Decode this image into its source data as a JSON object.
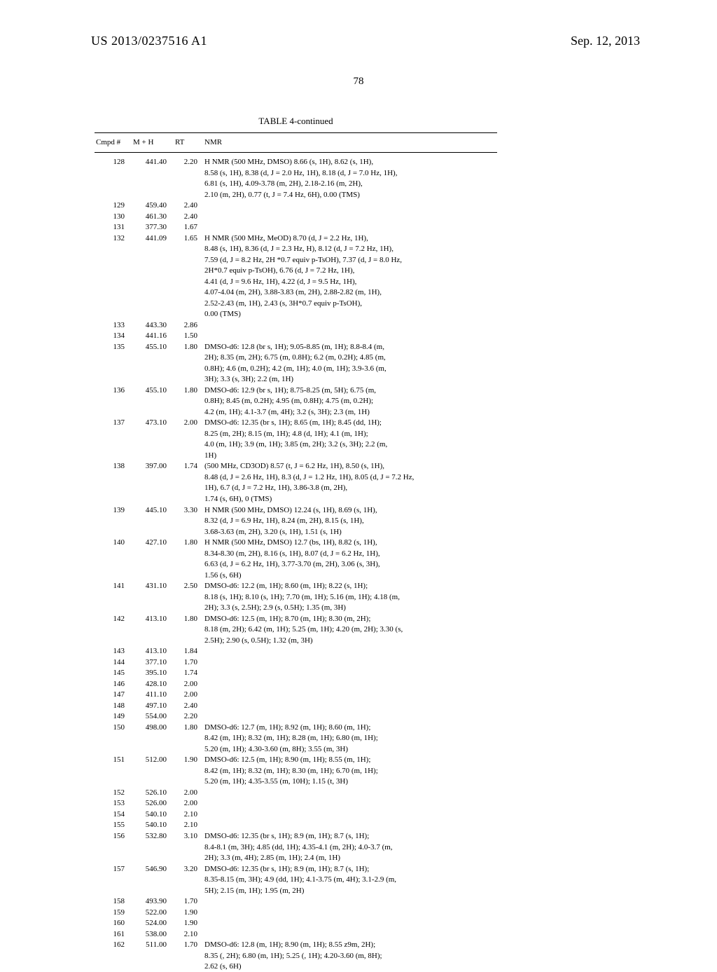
{
  "header": {
    "pub_number": "US 2013/0237516 A1",
    "pub_date": "Sep. 12, 2013",
    "page_number": "78"
  },
  "table": {
    "title": "TABLE 4-continued",
    "columns": {
      "cmpd": "Cmpd #",
      "mh": "M + H",
      "rt": "RT",
      "nmr": "NMR"
    },
    "rows": [
      {
        "cmpd": "128",
        "mh": "441.40",
        "rt": "2.20",
        "nmr": [
          "H NMR (500 MHz, DMSO) 8.66 (s, 1H), 8.62 (s, 1H),",
          "8.58 (s, 1H), 8.38 (d, J = 2.0 Hz, 1H), 8.18 (d, J = 7.0 Hz, 1H),",
          "6.81 (s, 1H), 4.09-3.78 (m, 2H), 2.18-2.16 (m, 2H),",
          "2.10 (m, 2H), 0.77 (t, J = 7.4 Hz, 6H), 0.00 (TMS)"
        ]
      },
      {
        "cmpd": "129",
        "mh": "459.40",
        "rt": "2.40",
        "nmr": []
      },
      {
        "cmpd": "130",
        "mh": "461.30",
        "rt": "2.40",
        "nmr": []
      },
      {
        "cmpd": "131",
        "mh": "377.30",
        "rt": "1.67",
        "nmr": []
      },
      {
        "cmpd": "132",
        "mh": "441.09",
        "rt": "1.65",
        "nmr": [
          "H NMR (500 MHz, MeOD) 8.70 (d, J = 2.2 Hz, 1H),",
          "8.48 (s, 1H), 8.36 (d, J = 2.3 Hz, H), 8.12 (d, J = 7.2 Hz, 1H),",
          "7.59 (d, J = 8.2 Hz, 2H *0.7 equiv p-TsOH), 7.37 (d, J = 8.0 Hz,",
          "2H*0.7 equiv p-TsOH), 6.76 (d, J = 7.2 Hz, 1H),",
          "4.41 (d, J = 9.6 Hz, 1H), 4.22 (d, J = 9.5 Hz, 1H),",
          "4.07-4.04 (m, 2H), 3.88-3.83 (m, 2H), 2.88-2.82 (m, 1H),",
          "2.52-2.43 (m, 1H), 2.43 (s, 3H*0.7 equiv p-TsOH),",
          "0.00 (TMS)"
        ]
      },
      {
        "cmpd": "133",
        "mh": "443.30",
        "rt": "2.86",
        "nmr": []
      },
      {
        "cmpd": "134",
        "mh": "441.16",
        "rt": "1.50",
        "nmr": []
      },
      {
        "cmpd": "135",
        "mh": "455.10",
        "rt": "1.80",
        "nmr": [
          "DMSO-d6: 12.8 (br s, 1H); 9.05-8.85 (m, 1H); 8.8-8.4 (m,",
          "2H); 8.35 (m, 2H); 6.75 (m, 0.8H); 6.2 (m, 0.2H); 4.85 (m,",
          "0.8H); 4.6 (m, 0.2H); 4.2 (m, 1H); 4.0 (m, 1H); 3.9-3.6 (m,",
          "3H); 3.3 (s, 3H); 2.2 (m, 1H)"
        ]
      },
      {
        "cmpd": "136",
        "mh": "455.10",
        "rt": "1.80",
        "nmr": [
          "DMSO-d6: 12.9 (br s, 1H); 8.75-8.25 (m, 5H); 6.75 (m,",
          "0.8H); 8.45 (m, 0.2H); 4.95 (m, 0.8H); 4.75 (m, 0.2H);",
          "4.2 (m, 1H); 4.1-3.7 (m, 4H); 3.2 (s, 3H); 2.3 (m, 1H)"
        ]
      },
      {
        "cmpd": "137",
        "mh": "473.10",
        "rt": "2.00",
        "nmr": [
          "DMSO-d6: 12.35 (br s, 1H); 8.65 (m, 1H); 8.45 (dd, 1H);",
          "8.25 (m, 2H); 8.15 (m, 1H); 4.8 (d, 1H); 4.1 (m, 1H);",
          "4.0 (m, 1H); 3.9 (m, 1H); 3.85 (m, 2H); 3.2 (s, 3H); 2.2 (m,",
          "1H)"
        ]
      },
      {
        "cmpd": "138",
        "mh": "397.00",
        "rt": "1.74",
        "nmr": [
          "(500 MHz, CD3OD) 8.57 (t, J = 6.2 Hz, 1H), 8.50 (s, 1H),",
          "8.48 (d, J = 2.6 Hz, 1H), 8.3 (d, J = 1.2 Hz, 1H), 8.05 (d, J = 7.2 Hz,",
          "1H), 6.7 (d, J = 7.2 Hz, 1H), 3.86-3.8 (m, 2H),",
          "1.74 (s, 6H), 0 (TMS)"
        ]
      },
      {
        "cmpd": "139",
        "mh": "445.10",
        "rt": "3.30",
        "nmr": [
          "H NMR (500 MHz, DMSO) 12.24 (s, 1H), 8.69 (s, 1H),",
          "8.32 (d, J = 6.9 Hz, 1H), 8.24 (m, 2H), 8.15 (s, 1H),",
          "3.68-3.63 (m, 2H), 3.20 (s, 1H), 1.51 (s, 1H)"
        ]
      },
      {
        "cmpd": "140",
        "mh": "427.10",
        "rt": "1.80",
        "nmr": [
          "H NMR (500 MHz, DMSO) 12.7 (bs, 1H), 8.82 (s, 1H),",
          "8.34-8.30 (m, 2H), 8.16 (s, 1H), 8.07 (d, J = 6.2 Hz, 1H),",
          "6.63 (d, J = 6.2 Hz, 1H), 3.77-3.70 (m, 2H), 3.06 (s, 3H),",
          "1.56 (s, 6H)"
        ]
      },
      {
        "cmpd": "141",
        "mh": "431.10",
        "rt": "2.50",
        "nmr": [
          "DMSO-d6: 12.2 (m, 1H); 8.60 (m, 1H); 8.22 (s, 1H);",
          "8.18 (s, 1H); 8.10 (s, 1H); 7.70 (m, 1H); 5.16 (m, 1H); 4.18 (m,",
          "2H); 3.3 (s, 2.5H); 2.9 (s, 0.5H); 1.35 (m, 3H)"
        ]
      },
      {
        "cmpd": "142",
        "mh": "413.10",
        "rt": "1.80",
        "nmr": [
          "DMSO-d6: 12.5 (m, 1H); 8.70 (m, 1H); 8.30 (m, 2H);",
          "8.18 (m, 2H); 6.42 (m, 1H); 5.25 (m, 1H); 4.20 (m, 2H); 3.30 (s,",
          "2.5H); 2.90 (s, 0.5H); 1.32 (m, 3H)"
        ]
      },
      {
        "cmpd": "143",
        "mh": "413.10",
        "rt": "1.84",
        "nmr": []
      },
      {
        "cmpd": "144",
        "mh": "377.10",
        "rt": "1.70",
        "nmr": []
      },
      {
        "cmpd": "145",
        "mh": "395.10",
        "rt": "1.74",
        "nmr": []
      },
      {
        "cmpd": "146",
        "mh": "428.10",
        "rt": "2.00",
        "nmr": []
      },
      {
        "cmpd": "147",
        "mh": "411.10",
        "rt": "2.00",
        "nmr": []
      },
      {
        "cmpd": "148",
        "mh": "497.10",
        "rt": "2.40",
        "nmr": []
      },
      {
        "cmpd": "149",
        "mh": "554.00",
        "rt": "2.20",
        "nmr": []
      },
      {
        "cmpd": "150",
        "mh": "498.00",
        "rt": "1.80",
        "nmr": [
          "DMSO-d6: 12.7 (m, 1H); 8.92 (m, 1H); 8.60 (m, 1H);",
          "8.42 (m, 1H); 8.32 (m, 1H); 8.28 (m, 1H); 6.80 (m, 1H);",
          "5.20 (m, 1H); 4.30-3.60 (m, 8H); 3.55 (m, 3H)"
        ]
      },
      {
        "cmpd": "151",
        "mh": "512.00",
        "rt": "1.90",
        "nmr": [
          "DMSO-d6: 12.5 (m, 1H); 8.90 (m, 1H); 8.55 (m, 1H);",
          "8.42 (m, 1H); 8.32 (m, 1H); 8.30 (m, 1H); 6.70 (m, 1H);",
          "5.20 (m, 1H); 4.35-3.55 (m, 10H); 1.15 (t, 3H)"
        ]
      },
      {
        "cmpd": "152",
        "mh": "526.10",
        "rt": "2.00",
        "nmr": []
      },
      {
        "cmpd": "153",
        "mh": "526.00",
        "rt": "2.00",
        "nmr": []
      },
      {
        "cmpd": "154",
        "mh": "540.10",
        "rt": "2.10",
        "nmr": []
      },
      {
        "cmpd": "155",
        "mh": "540.10",
        "rt": "2.10",
        "nmr": []
      },
      {
        "cmpd": "156",
        "mh": "532.80",
        "rt": "3.10",
        "nmr": [
          "DMSO-d6: 12.35 (br s, 1H); 8.9 (m, 1H); 8.7 (s, 1H);",
          "8.4-8.1 (m, 3H); 4.85 (dd, 1H); 4.35-4.1 (m, 2H); 4.0-3.7 (m,",
          "2H); 3.3 (m, 4H); 2.85 (m, 1H); 2.4 (m, 1H)"
        ]
      },
      {
        "cmpd": "157",
        "mh": "546.90",
        "rt": "3.20",
        "nmr": [
          "DMSO-d6: 12.35 (br s, 1H); 8.9 (m, 1H); 8.7 (s, 1H);",
          "8.35-8.15 (m, 3H); 4.9 (dd, 1H); 4.1-3.75 (m, 4H); 3.1-2.9 (m,",
          "5H); 2.15 (m, 1H); 1.95 (m, 2H)"
        ]
      },
      {
        "cmpd": "158",
        "mh": "493.90",
        "rt": "1.70",
        "nmr": []
      },
      {
        "cmpd": "159",
        "mh": "522.00",
        "rt": "1.90",
        "nmr": []
      },
      {
        "cmpd": "160",
        "mh": "524.00",
        "rt": "1.90",
        "nmr": []
      },
      {
        "cmpd": "161",
        "mh": "538.00",
        "rt": "2.10",
        "nmr": []
      },
      {
        "cmpd": "162",
        "mh": "511.00",
        "rt": "1.70",
        "nmr": [
          "DMSO-d6: 12.8 (m, 1H); 8.90 (m, 1H); 8.55 z9m, 2H);",
          "8.35 (, 2H); 6.80 (m, 1H); 5.25 (, 1H); 4.20-3.60 (m, 8H);",
          "2.62 (s, 6H)"
        ]
      }
    ]
  }
}
